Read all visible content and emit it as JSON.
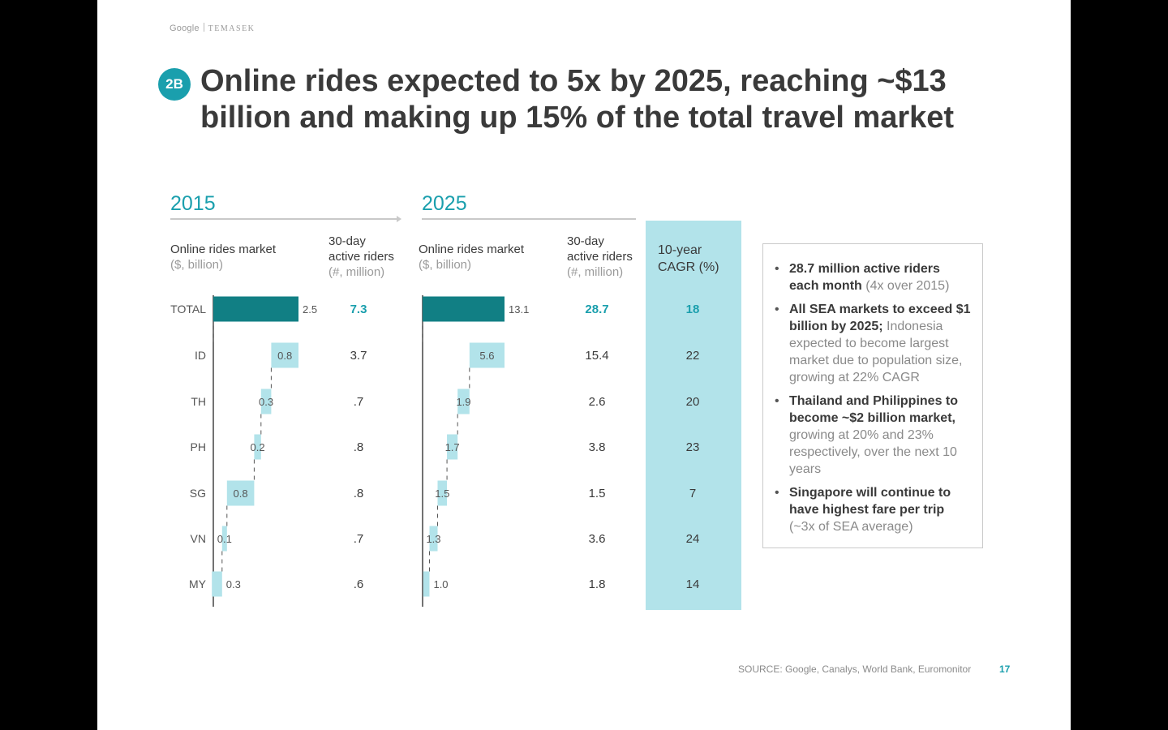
{
  "brand": {
    "google": "Google",
    "temasek": "TEMASEK"
  },
  "badge": "2B",
  "title": "Online rides expected to 5x by 2025, reaching ~$13 billion and making up 15% of the total travel market",
  "headers": {
    "y2015": "2015",
    "y2025": "2025",
    "market_line1": "Online rides market",
    "market_line2": "($, billion)",
    "riders_line1": "30-day",
    "riders_line2": "active riders",
    "riders_line3": "(#, million)",
    "cagr_line1": "10-year",
    "cagr_line2": "CAGR (%)"
  },
  "chart_data": [
    {
      "type": "bar",
      "title": "2015 Online rides market ($, billion) — waterfall",
      "categories": [
        "TOTAL",
        "ID",
        "TH",
        "PH",
        "SG",
        "VN",
        "MY"
      ],
      "values": [
        2.5,
        0.8,
        0.3,
        0.2,
        0.8,
        0.1,
        0.3
      ],
      "value_labels": [
        "2.5",
        "0.8",
        "0.3",
        "0.2",
        "0.8",
        "0.1",
        "0.3"
      ],
      "active_riders_million": [
        "7.3",
        "3.7",
        ".7",
        ".8",
        ".8",
        ".7",
        ".6"
      ]
    },
    {
      "type": "bar",
      "title": "2025 Online rides market ($, billion) — waterfall",
      "categories": [
        "TOTAL",
        "ID",
        "TH",
        "PH",
        "SG",
        "VN",
        "MY"
      ],
      "values": [
        13.1,
        5.6,
        1.9,
        1.7,
        1.5,
        1.3,
        1.0
      ],
      "value_labels": [
        "13.1",
        "5.6",
        "1.9",
        "1.7",
        "1.5",
        "1.3",
        "1.0"
      ],
      "active_riders_million": [
        "28.7",
        "15.4",
        "2.6",
        "3.8",
        "1.5",
        "3.6",
        "1.8"
      ]
    },
    {
      "type": "table",
      "title": "10-year CAGR (%)",
      "categories": [
        "TOTAL",
        "ID",
        "TH",
        "PH",
        "SG",
        "VN",
        "MY"
      ],
      "values": [
        "18",
        "22",
        "20",
        "23",
        "7",
        "24",
        "14"
      ]
    }
  ],
  "info": {
    "b1_bold": "28.7 million active riders each month",
    "b1_rest": " (4x over 2015)",
    "b2_bold": "All SEA markets to exceed $1 billion by 2025;",
    "b2_rest": " Indonesia expected to become largest market due to population size, growing at 22% CAGR",
    "b3_bold": "Thailand and Philippines to become ~$2 billion market,",
    "b3_rest": " growing at 20% and 23% respectively, over the next 10 years",
    "b4_bold": "Singapore will continue to have highest fare per trip",
    "b4_rest": " (~3x of SEA average)"
  },
  "footer": {
    "source": "SOURCE: Google, Canalys, World Bank, Euromonitor",
    "page": "17"
  },
  "colors": {
    "teal_dark": "#117f84",
    "teal_light": "#b2e3ea",
    "accent": "#1a9fad"
  }
}
